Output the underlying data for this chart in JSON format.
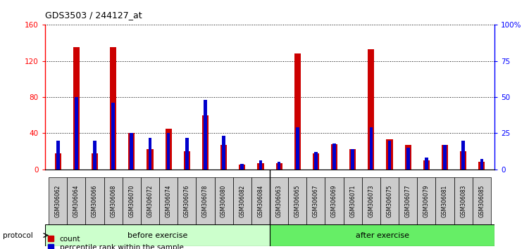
{
  "title": "GDS3503 / 244127_at",
  "samples": [
    "GSM306062",
    "GSM306064",
    "GSM306066",
    "GSM306068",
    "GSM306070",
    "GSM306072",
    "GSM306074",
    "GSM306076",
    "GSM306078",
    "GSM306080",
    "GSM306082",
    "GSM306084",
    "GSM306063",
    "GSM306065",
    "GSM306067",
    "GSM306069",
    "GSM306071",
    "GSM306073",
    "GSM306075",
    "GSM306077",
    "GSM306079",
    "GSM306081",
    "GSM306083",
    "GSM306085"
  ],
  "count": [
    18,
    135,
    18,
    135,
    40,
    22,
    45,
    20,
    60,
    27,
    5,
    7,
    7,
    128,
    18,
    28,
    22,
    133,
    33,
    27,
    10,
    27,
    20,
    8
  ],
  "percentile": [
    20,
    50,
    20,
    46,
    25,
    22,
    25,
    22,
    48,
    23,
    4,
    6,
    5,
    29,
    12,
    18,
    14,
    29,
    20,
    15,
    8,
    17,
    20,
    7
  ],
  "n_before": 12,
  "bar_color_count": "#cc0000",
  "bar_color_percentile": "#0000cc",
  "ylim_left": [
    0,
    160
  ],
  "ylim_right": [
    0,
    100
  ],
  "yticks_left": [
    0,
    40,
    80,
    120,
    160
  ],
  "yticks_right": [
    0,
    25,
    50,
    75,
    100
  ],
  "ytick_labels_right": [
    "0",
    "25",
    "50",
    "75",
    "100%"
  ],
  "ytick_labels_left": [
    "0",
    "40",
    "80",
    "120",
    "160"
  ],
  "background_color": "#ffffff",
  "before_color_light": "#ccffcc",
  "after_color": "#66ee66",
  "protocol_label": "protocol",
  "before_label": "before exercise",
  "after_label": "after exercise",
  "legend_count": "count",
  "legend_percentile": "percentile rank within the sample"
}
